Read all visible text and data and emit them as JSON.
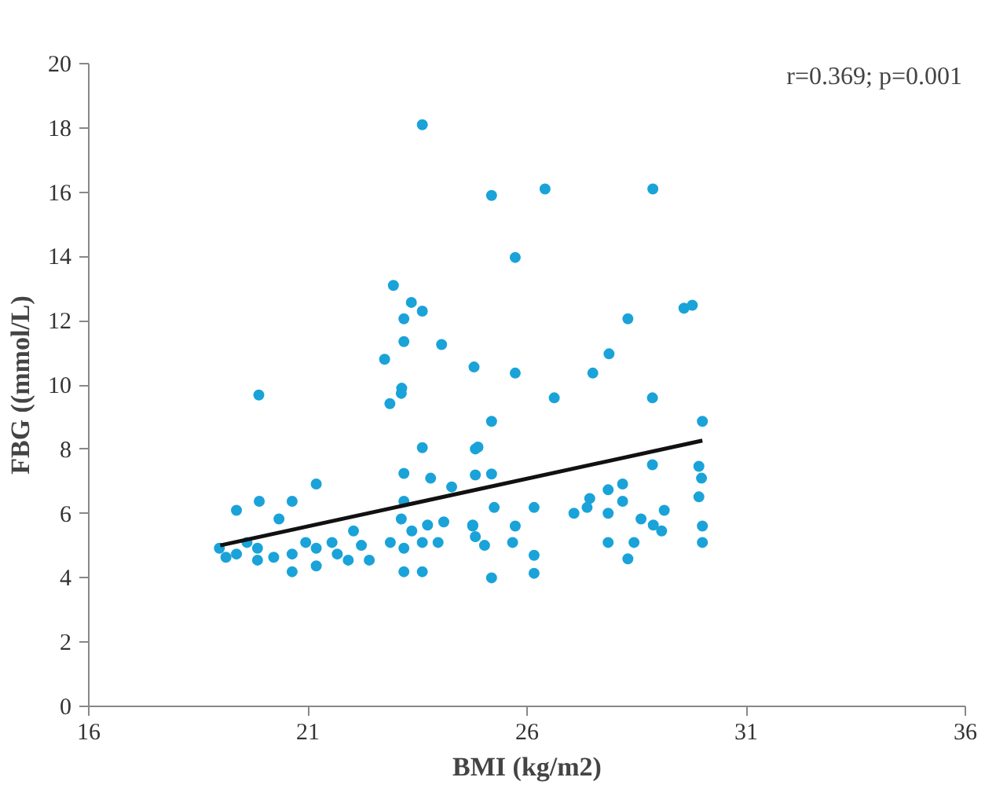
{
  "chart_data": {
    "type": "scatter",
    "xlabel": "BMI (kg/m2)",
    "ylabel": "FBG ((mmol/L)",
    "annotations": [
      "r=0.369; p=0.001"
    ],
    "xlim": [
      16,
      36
    ],
    "xticks": [
      16,
      21,
      26,
      31,
      36
    ],
    "ylim": [
      0,
      20
    ],
    "yticks": [
      0,
      2,
      4,
      6,
      8,
      10,
      12,
      14,
      16,
      18,
      20
    ],
    "grid": false,
    "series": [
      {
        "marker": "circle",
        "color": "#1aa3d9",
        "x": [
          23.61,
          25.19,
          26.41,
          28.87,
          25.73,
          22.95,
          23.36,
          23.61,
          23.19,
          23.19,
          24.05,
          22.75,
          24.79,
          25.73,
          27.5,
          27.87,
          28.3,
          29.58,
          29.77,
          23.14,
          19.88,
          22.87,
          23.13,
          23.61,
          21.19,
          23.19,
          23.8,
          19.37,
          19.89,
          20.64,
          20.34,
          18.98,
          19.13,
          19.37,
          19.61,
          19.85,
          19.85,
          20.22,
          20.64,
          20.64,
          20.95,
          21.19,
          21.19,
          21.55,
          21.67,
          21.92,
          22.04,
          22.4,
          22.22,
          22.88,
          23.19,
          23.19,
          23.61,
          23.37,
          23.61,
          23.97,
          23.73,
          23.13,
          23.19,
          24.1,
          24.28,
          24.82,
          24.76,
          24.82,
          25.19,
          24.88,
          25.19,
          25.25,
          24.76,
          24.82,
          25.03,
          25.19,
          26.16,
          25.73,
          25.67,
          26.16,
          26.16,
          26.62,
          28.86,
          30.0,
          27.07,
          27.43,
          27.37,
          27.85,
          27.85,
          27.85,
          28.18,
          28.18,
          28.3,
          28.44,
          28.6,
          28.86,
          28.88,
          29.13,
          29.07,
          29.92,
          29.98,
          29.92,
          30.0,
          30.0
        ],
        "values": [
          18.1,
          15.9,
          16.1,
          16.1,
          13.97,
          13.1,
          12.57,
          12.3,
          12.06,
          11.35,
          11.26,
          10.8,
          10.56,
          10.37,
          10.37,
          10.97,
          12.06,
          12.39,
          12.48,
          9.9,
          9.69,
          9.42,
          9.74,
          8.05,
          6.92,
          7.25,
          7.1,
          6.1,
          6.38,
          6.38,
          5.83,
          4.92,
          4.64,
          4.74,
          5.1,
          4.92,
          4.55,
          4.64,
          4.74,
          4.19,
          5.1,
          4.37,
          4.92,
          5.1,
          4.74,
          4.55,
          5.46,
          4.55,
          5.01,
          5.1,
          4.92,
          4.19,
          4.19,
          5.46,
          5.1,
          5.1,
          5.64,
          5.83,
          6.38,
          5.74,
          6.83,
          8.01,
          5.64,
          7.2,
          8.87,
          8.07,
          7.23,
          6.19,
          5.61,
          5.28,
          5.01,
          4.0,
          6.19,
          5.61,
          5.1,
          4.7,
          4.14,
          9.6,
          9.6,
          8.87,
          6.01,
          6.47,
          6.19,
          6.74,
          6.01,
          5.1,
          6.92,
          6.38,
          4.59,
          5.1,
          5.83,
          7.52,
          5.64,
          6.1,
          5.46,
          7.47,
          7.1,
          6.52,
          5.61,
          5.1
        ]
      },
      {
        "type": "line",
        "marker": "none",
        "color": "#111111",
        "x": [
          19.0,
          30.0
        ],
        "values": [
          5.01,
          8.27
        ]
      }
    ]
  }
}
